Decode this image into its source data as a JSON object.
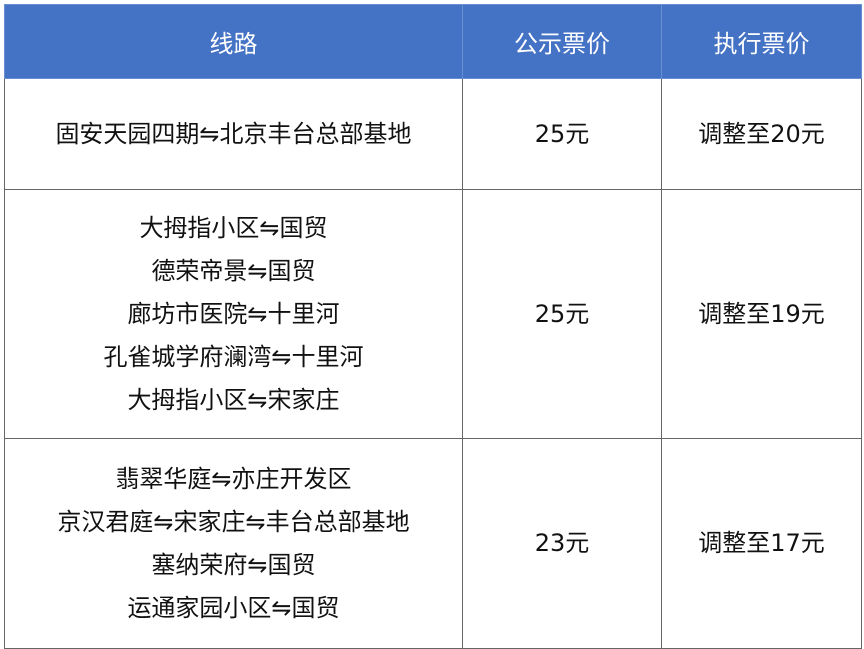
{
  "table": {
    "headers": [
      "线路",
      "公示票价",
      "执行票价"
    ],
    "header_color": "#4472c4",
    "rows": [
      {
        "routes": [
          "固安天园四期⇋北京丰台总部基地"
        ],
        "posted_price": "25元",
        "actual_price": "调整至20元"
      },
      {
        "routes": [
          "大拇指小区⇋国贸",
          "德荣帝景⇋国贸",
          "廊坊市医院⇋十里河",
          "孔雀城学府澜湾⇋十里河",
          "大拇指小区⇋宋家庄"
        ],
        "posted_price": "25元",
        "actual_price": "调整至19元"
      },
      {
        "routes": [
          "翡翠华庭⇋亦庄开发区",
          "京汉君庭⇋宋家庄⇋丰台总部基地",
          "塞纳荣府⇋国贸",
          "运通家园小区⇋国贸"
        ],
        "posted_price": "23元",
        "actual_price": "调整至17元"
      }
    ]
  }
}
